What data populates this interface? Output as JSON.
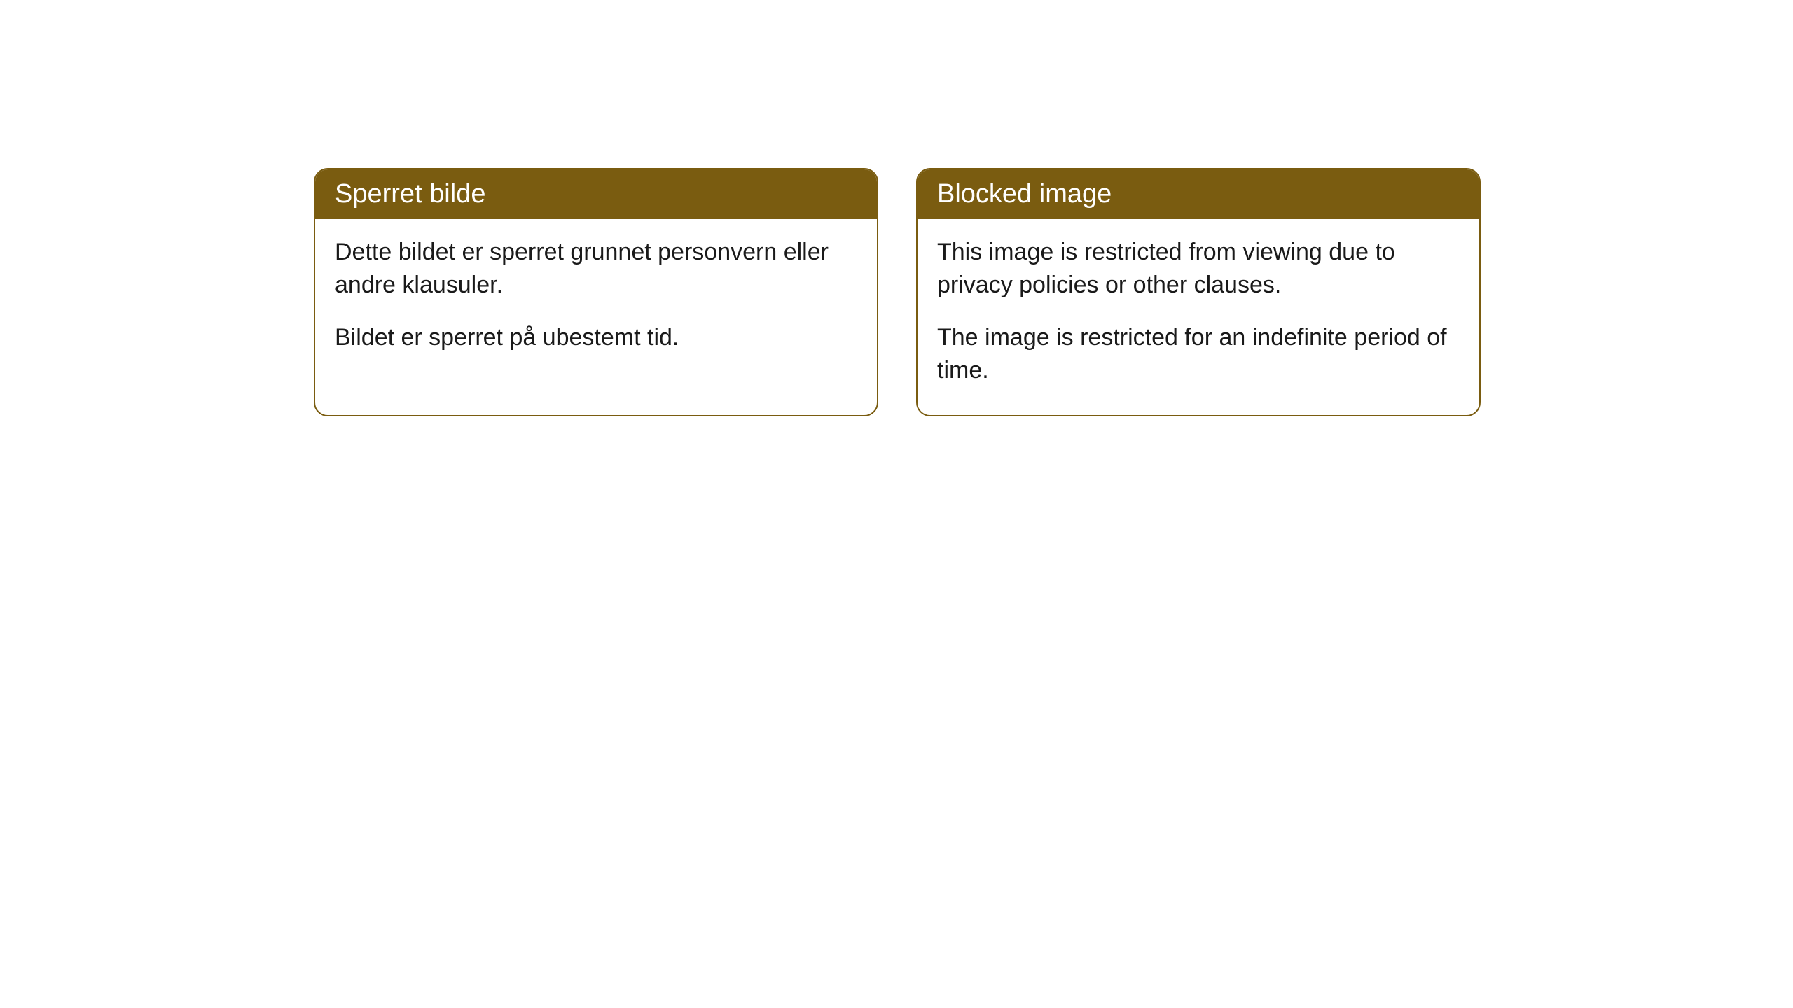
{
  "cards": [
    {
      "title": "Sperret bilde",
      "para1": "Dette bildet er sperret grunnet personvern eller andre klausuler.",
      "para2": "Bildet er sperret på ubestemt tid."
    },
    {
      "title": "Blocked image",
      "para1": "This image is restricted from viewing due to privacy policies or other clauses.",
      "para2": "The image is restricted for an indefinite period of time."
    }
  ],
  "style": {
    "header_bg_color": "#7a5c10",
    "header_text_color": "#ffffff",
    "border_color": "#7a5c10",
    "body_bg_color": "#ffffff",
    "body_text_color": "#1a1a1a",
    "border_radius": 20,
    "title_fontsize": 38,
    "body_fontsize": 34
  }
}
